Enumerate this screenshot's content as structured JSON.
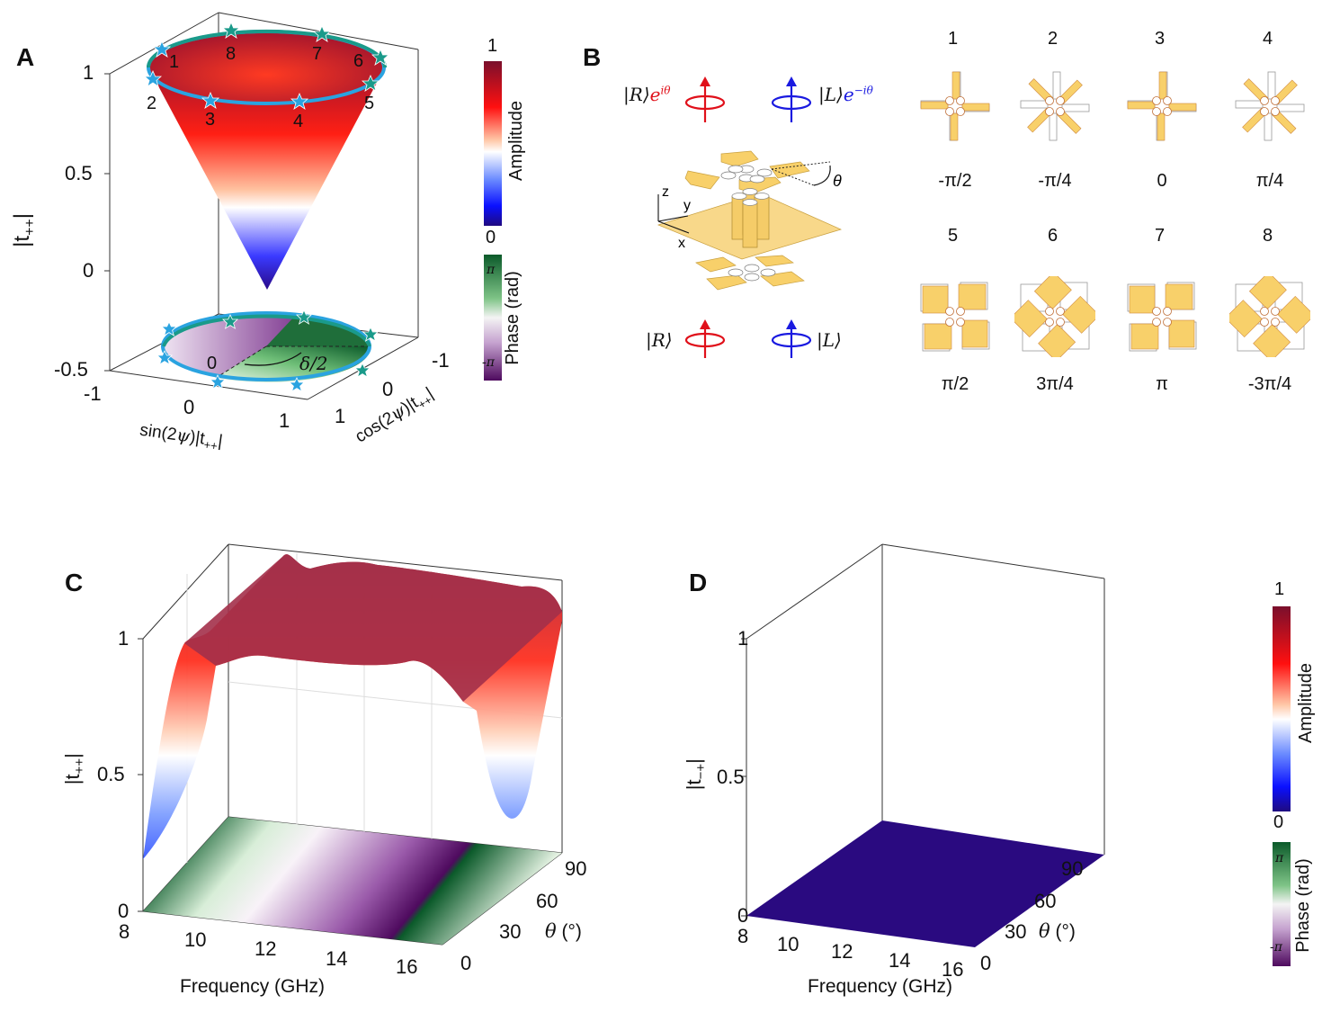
{
  "panels": {
    "A": {
      "letter": "A",
      "zlabel": "|t++|",
      "z_ticks": [
        "1",
        "0.5",
        "0",
        "-0.5"
      ],
      "x_ticks": [
        "-1",
        "0",
        "1"
      ],
      "y_ticks": [
        "-1",
        "0",
        "1"
      ],
      "xlabel": "sin(2ψ)|t++|",
      "ylabel": "cos(2ψ)|t++|",
      "state_labels": [
        "1",
        "2",
        "3",
        "4",
        "5",
        "6",
        "7",
        "8"
      ],
      "floor_zero_label": "0",
      "floor_angle_label": "δ/2",
      "colorbar_amp": {
        "title": "Amplitude",
        "max": "1",
        "min": "0"
      },
      "colorbar_phase": {
        "title": "Phase (rad)",
        "max": "π",
        "min": "-π"
      }
    },
    "B": {
      "letter": "B",
      "out_R": "|R⟩e^{iθ}",
      "out_L": "|L⟩e^{−iθ}",
      "in_R": "|R⟩",
      "in_L": "|L⟩",
      "axes": {
        "z": "z",
        "y": "y",
        "x": "x"
      },
      "theta": "θ",
      "states": [
        {
          "index": "1",
          "phase": "-π/2"
        },
        {
          "index": "2",
          "phase": "-π/4"
        },
        {
          "index": "3",
          "phase": "0"
        },
        {
          "index": "4",
          "phase": "π/4"
        },
        {
          "index": "5",
          "phase": "π/2"
        },
        {
          "index": "6",
          "phase": "3π/4"
        },
        {
          "index": "7",
          "phase": "π"
        },
        {
          "index": "8",
          "phase": "-3π/4"
        }
      ]
    },
    "C": {
      "letter": "C",
      "zlabel": "|t++|",
      "z_ticks": [
        "1",
        "0.5",
        "0"
      ],
      "freq_ticks": [
        "8",
        "10",
        "12",
        "14",
        "16"
      ],
      "theta_ticks": [
        "0",
        "30",
        "60",
        "90"
      ],
      "xlabel": "Frequency (GHz)",
      "ylabel": "θ (°)"
    },
    "D": {
      "letter": "D",
      "zlabel": "|t−+|",
      "z_ticks": [
        "1",
        "0.5",
        "0"
      ],
      "freq_ticks": [
        "8",
        "10",
        "12",
        "14",
        "16"
      ],
      "theta_ticks": [
        "0",
        "30",
        "60",
        "90"
      ],
      "xlabel": "Frequency (GHz)",
      "ylabel": "θ (°)",
      "colorbar_amp": {
        "title": "Amplitude",
        "max": "1",
        "min": "0"
      },
      "colorbar_phase": {
        "title": "Phase (rad)",
        "max": "π",
        "min": "-π"
      }
    }
  },
  "colors": {
    "cone_top": "#9b1b30",
    "cone_mid": "#ff2a1a",
    "cone_white": "#ffffff",
    "cone_blue": "#1a1aff",
    "cone_tip": "#2a0a8a",
    "path_front": "#2aa3e0",
    "path_back": "#1a9a8a",
    "phase_green": "#0b5a2a",
    "phase_purple": "#4e0a5e",
    "surface_flat": "#2a0a80",
    "structure_gold": "#f8d06a",
    "R_red": "#e0101a",
    "L_blue": "#1a1ae0"
  },
  "chart_data": [
    {
      "panel": "A",
      "type": "surface",
      "title": "",
      "zlabel": "|t++|",
      "xlabel": "sin(2ψ)|t++|",
      "ylabel": "cos(2ψ)|t++|",
      "zlim": [
        -0.5,
        1.1
      ],
      "xlim": [
        -1,
        1
      ],
      "ylim": [
        -1,
        1
      ],
      "description": "cone |t++| = sqrt(x^2+y^2), rim at |t++|≈0.95, projected phase disk on floor z=-0.5",
      "rim_amplitude": 0.95,
      "states": [
        {
          "label": "1",
          "phase": "-π/2"
        },
        {
          "label": "2",
          "phase": "-π/4"
        },
        {
          "label": "3",
          "phase": "0"
        },
        {
          "label": "4",
          "phase": "π/4"
        },
        {
          "label": "5",
          "phase": "π/2"
        },
        {
          "label": "6",
          "phase": "3π/4"
        },
        {
          "label": "7",
          "phase": "π"
        },
        {
          "label": "8",
          "phase": "-3π/4"
        }
      ]
    },
    {
      "panel": "C",
      "type": "surface",
      "zlabel": "|t++|",
      "xlabel": "Frequency (GHz)",
      "ylabel": "θ (°)",
      "xlim": [
        8,
        16
      ],
      "ylim": [
        0,
        90
      ],
      "zlim": [
        0,
        1
      ],
      "x": [
        8,
        9,
        9.5,
        10,
        11,
        12,
        13,
        14,
        14.5,
        15,
        16
      ],
      "z_at_theta_any": [
        0.22,
        0.75,
        0.95,
        0.93,
        0.95,
        0.94,
        0.92,
        0.9,
        0.25,
        0.85,
        0.9
      ],
      "floor": "phase map, diagonal bands vs frequency and θ"
    },
    {
      "panel": "D",
      "type": "surface",
      "zlabel": "|t−+|",
      "xlabel": "Frequency (GHz)",
      "ylabel": "θ (°)",
      "xlim": [
        8,
        16
      ],
      "ylim": [
        0,
        90
      ],
      "zlim": [
        0,
        1
      ],
      "z_constant": 0
    }
  ]
}
